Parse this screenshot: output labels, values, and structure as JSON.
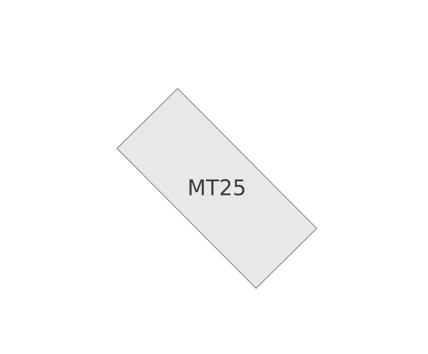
{
  "shape": {
    "label": "MT25",
    "fill_color": "#e8e8e8",
    "stroke_color": "#6e6e6e",
    "text_color": "#3c3c3c"
  }
}
